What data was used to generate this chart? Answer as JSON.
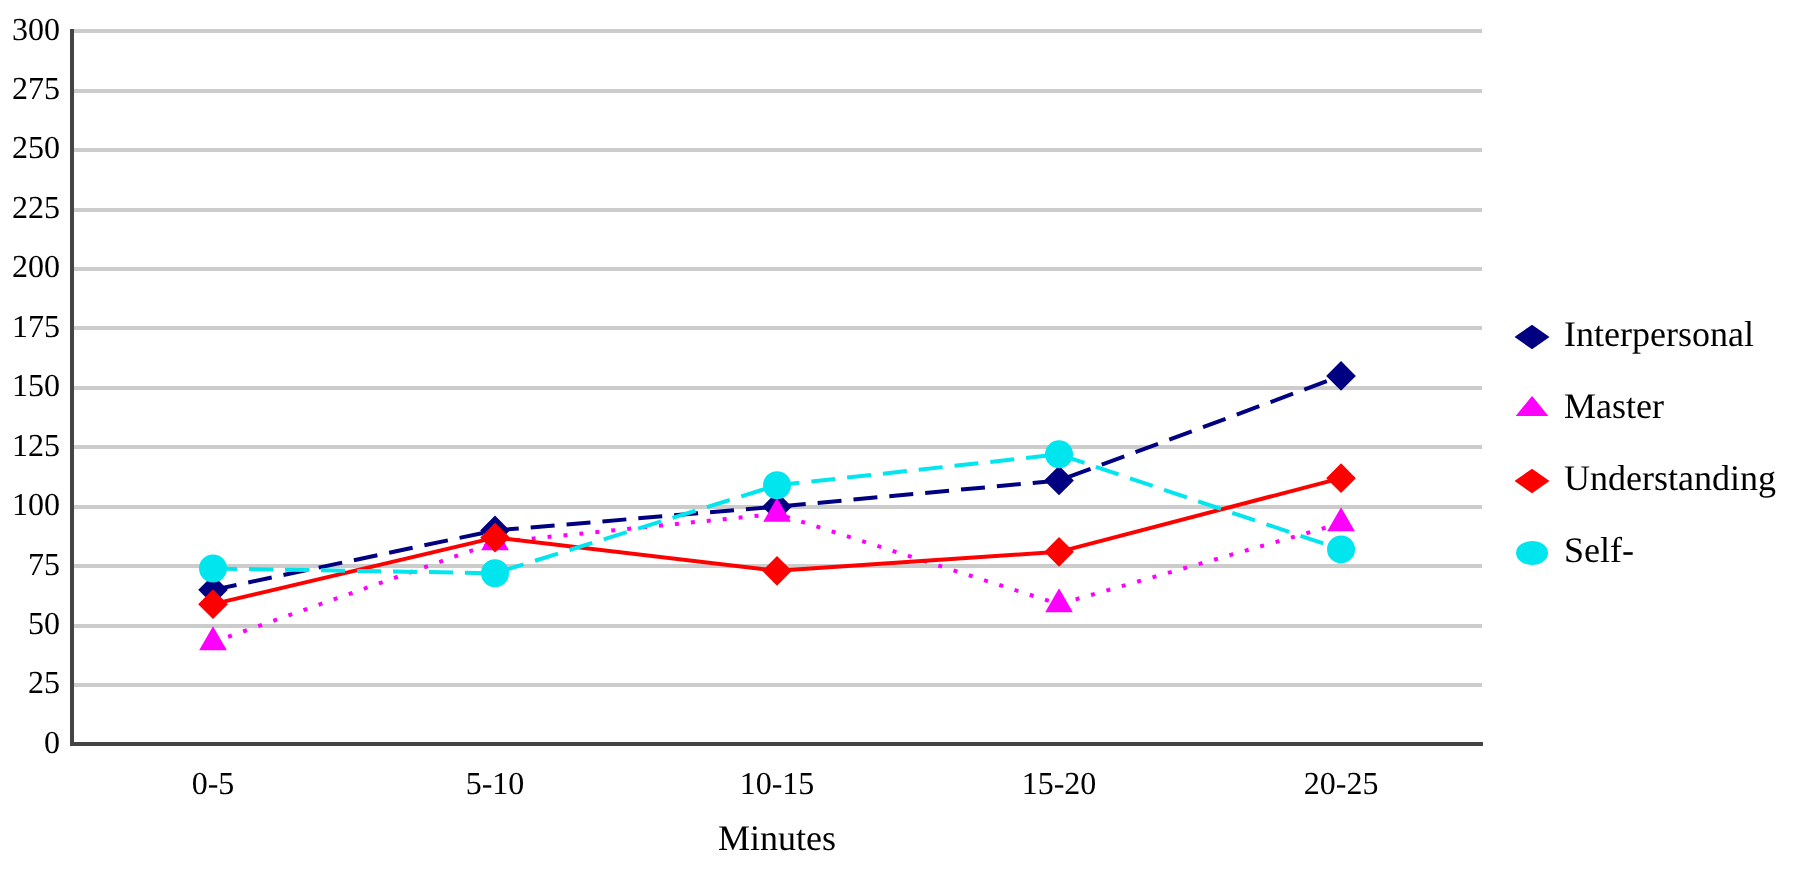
{
  "chart_data": {
    "type": "line",
    "xlabel": "Minutes",
    "categories": [
      "0-5",
      "5-10",
      "10-15",
      "15-20",
      "20-25"
    ],
    "series": [
      {
        "name": "Interpersonal",
        "color": "#000080",
        "marker": "diamond",
        "line_style": "dashed",
        "values": [
          65,
          90,
          100,
          111,
          155
        ]
      },
      {
        "name": "Master",
        "color": "#ff00ff",
        "marker": "triangle",
        "line_style": "dotted",
        "values": [
          43,
          85,
          97,
          59,
          93
        ]
      },
      {
        "name": "Understanding",
        "color": "#ff0000",
        "marker": "diamond",
        "line_style": "solid",
        "values": [
          59,
          87,
          73,
          81,
          112
        ]
      },
      {
        "name": "Self-",
        "color": "#00e5ee",
        "marker": "circle",
        "line_style": "dashed",
        "values": [
          74,
          72,
          109,
          122,
          82
        ]
      }
    ],
    "ylim": [
      0,
      300
    ],
    "yticks": [
      0,
      25,
      50,
      75,
      100,
      125,
      150,
      175,
      200,
      225,
      250,
      275,
      300
    ],
    "grid": "y",
    "legend": "right"
  }
}
